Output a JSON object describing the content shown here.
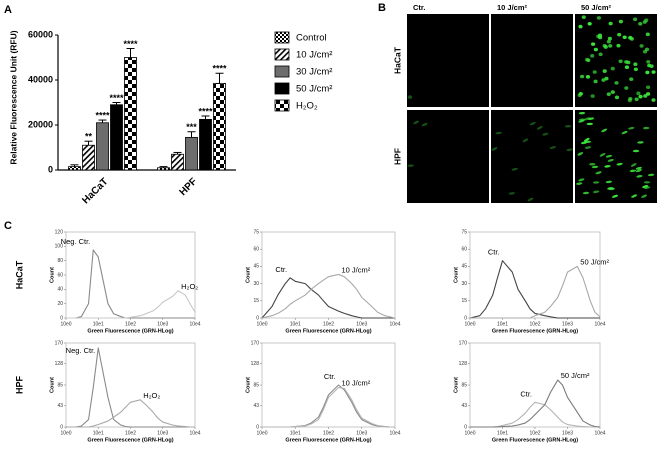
{
  "panels": {
    "a": "A",
    "b": "B",
    "c": "C"
  },
  "microscopy": {
    "columns": [
      "Ctr.",
      "10 J/cm²",
      "50 J/cm²"
    ],
    "rows": [
      "HaCaT",
      "HPF"
    ]
  },
  "flow_rows": [
    "HaCaT",
    "HPF"
  ],
  "chart_data": [
    {
      "type": "bar",
      "ylabel": "Relative Fluorescence Unit (RFU)",
      "categories": [
        "HaCaT",
        "HPF"
      ],
      "ylim": [
        0,
        60000
      ],
      "yticks": [
        0,
        20000,
        40000,
        60000
      ],
      "series": [
        {
          "name": "Control",
          "color": "#000000",
          "pattern": "checker-small",
          "values": [
            1500,
            1000
          ],
          "errors": [
            800,
            500
          ],
          "significance": [
            null,
            null
          ]
        },
        {
          "name": "10 J/cm²",
          "color": "#000000",
          "pattern": "hatch",
          "values": [
            11000,
            7000
          ],
          "errors": [
            1800,
            800
          ],
          "significance": [
            "**",
            null
          ]
        },
        {
          "name": "30 J/cm²",
          "color": "#6d6d6d",
          "pattern": null,
          "values": [
            21000,
            14500
          ],
          "errors": [
            1200,
            2500
          ],
          "significance": [
            "****",
            "***"
          ]
        },
        {
          "name": "50 J/cm²",
          "color": "#000000",
          "pattern": null,
          "values": [
            29000,
            22500
          ],
          "errors": [
            1000,
            1500
          ],
          "significance": [
            "****",
            "****"
          ]
        },
        {
          "name": "H₂O₂",
          "color": "#000000",
          "pattern": "checker-large",
          "values": [
            50000,
            38500
          ],
          "errors": [
            4000,
            4500
          ],
          "significance": [
            "****",
            "****"
          ]
        }
      ]
    },
    {
      "type": "line",
      "xscale": "log",
      "xlabel": "Green Fluorescence (GRN-HLog)",
      "ylabel": "Count",
      "x": [
        1,
        2,
        3,
        5,
        7,
        10,
        20,
        30,
        50,
        70,
        100,
        200,
        300,
        500,
        700,
        1000,
        2000,
        3000,
        5000,
        7000,
        10000
      ],
      "xlim": [
        1,
        10000
      ],
      "xticks": [
        {
          "value": 1,
          "label": "10e0"
        },
        {
          "value": 10,
          "label": "10e1"
        },
        {
          "value": 100,
          "label": "10e2"
        },
        {
          "value": 1000,
          "label": "10e3"
        },
        {
          "value": 10000,
          "label": "10e4"
        }
      ],
      "ylim": [
        0,
        120
      ],
      "yticks": [
        0,
        20,
        40,
        60,
        80,
        100,
        120
      ],
      "series": [
        {
          "name": "Neg. Ctr.",
          "color": "#8a8a8a",
          "values": [
            0,
            0,
            2,
            20,
            95,
            85,
            20,
            6,
            2,
            0,
            0,
            0,
            0,
            0,
            0,
            0,
            0,
            0,
            0,
            0,
            0
          ]
        },
        {
          "name": "H₂O₂",
          "color": "#c8c8c8",
          "values": [
            0,
            0,
            0,
            0,
            0,
            0,
            0,
            0,
            0,
            0,
            1,
            3,
            6,
            10,
            15,
            22,
            30,
            38,
            32,
            20,
            8
          ]
        }
      ]
    },
    {
      "type": "line",
      "xscale": "log",
      "xlabel": "Green Fluorescence (GRN-HLog)",
      "ylabel": "Count",
      "x": [
        1,
        2,
        3,
        5,
        7,
        10,
        20,
        30,
        50,
        70,
        100,
        200,
        300,
        500,
        700,
        1000,
        2000,
        3000,
        5000,
        7000,
        10000
      ],
      "xlim": [
        1,
        10000
      ],
      "xticks": [
        {
          "value": 1,
          "label": "10e0"
        },
        {
          "value": 10,
          "label": "10e1"
        },
        {
          "value": 100,
          "label": "10e2"
        },
        {
          "value": 1000,
          "label": "10e3"
        },
        {
          "value": 10000,
          "label": "10e4"
        }
      ],
      "ylim": [
        0,
        75
      ],
      "yticks": [
        0,
        15,
        30,
        45,
        60,
        75
      ],
      "series": [
        {
          "name": "Ctr.",
          "color": "#444444",
          "values": [
            0,
            10,
            20,
            30,
            35,
            32,
            30,
            25,
            20,
            15,
            10,
            6,
            4,
            2,
            1,
            0,
            0,
            0,
            0,
            0,
            0
          ]
        },
        {
          "name": "10 J/cm²",
          "color": "#a8a8a8",
          "values": [
            0,
            2,
            4,
            8,
            12,
            15,
            20,
            25,
            30,
            33,
            36,
            38,
            36,
            30,
            25,
            18,
            10,
            5,
            2,
            1,
            0
          ]
        }
      ]
    },
    {
      "type": "line",
      "xscale": "log",
      "xlabel": "Green Fluorescence (GRN-HLog)",
      "ylabel": "Count",
      "x": [
        1,
        2,
        3,
        5,
        7,
        10,
        20,
        30,
        50,
        70,
        100,
        200,
        300,
        500,
        700,
        1000,
        2000,
        3000,
        5000,
        7000,
        10000
      ],
      "xlim": [
        1,
        10000
      ],
      "xticks": [
        {
          "value": 1,
          "label": "10e0"
        },
        {
          "value": 10,
          "label": "10e1"
        },
        {
          "value": 100,
          "label": "10e2"
        },
        {
          "value": 1000,
          "label": "10e3"
        },
        {
          "value": 10000,
          "label": "10e4"
        }
      ],
      "ylim": [
        0,
        75
      ],
      "yticks": [
        0,
        15,
        30,
        45,
        60,
        75
      ],
      "series": [
        {
          "name": "Ctr.",
          "color": "#444444",
          "values": [
            0,
            2,
            8,
            20,
            35,
            50,
            40,
            25,
            15,
            8,
            4,
            2,
            1,
            0,
            0,
            0,
            0,
            0,
            0,
            0,
            0
          ]
        },
        {
          "name": "50 J/cm²",
          "color": "#a8a8a8",
          "values": [
            0,
            0,
            0,
            0,
            0,
            0,
            0,
            0,
            0,
            0,
            2,
            5,
            10,
            18,
            28,
            40,
            45,
            35,
            15,
            5,
            1
          ]
        }
      ]
    },
    {
      "type": "line",
      "xscale": "log",
      "xlabel": "Green Fluorescence (GRN-HLog)",
      "ylabel": "Count",
      "x": [
        1,
        2,
        3,
        5,
        7,
        10,
        20,
        30,
        50,
        70,
        100,
        200,
        300,
        500,
        700,
        1000,
        2000,
        3000,
        5000,
        7000,
        10000
      ],
      "xlim": [
        1,
        10000
      ],
      "xticks": [
        {
          "value": 1,
          "label": "10e0"
        },
        {
          "value": 10,
          "label": "10e1"
        },
        {
          "value": 100,
          "label": "10e2"
        },
        {
          "value": 1000,
          "label": "10e3"
        },
        {
          "value": 10000,
          "label": "10e4"
        }
      ],
      "ylim": [
        0,
        170
      ],
      "yticks": [
        0,
        43,
        85,
        128,
        170
      ],
      "series": [
        {
          "name": "Neg. Ctr.",
          "color": "#8a8a8a",
          "values": [
            0,
            0,
            2,
            15,
            80,
            160,
            60,
            15,
            4,
            1,
            0,
            0,
            0,
            0,
            0,
            0,
            0,
            0,
            0,
            0,
            0
          ]
        },
        {
          "name": "H₂O₂",
          "color": "#a8a8a8",
          "values": [
            0,
            0,
            0,
            0,
            2,
            5,
            12,
            20,
            30,
            40,
            50,
            55,
            45,
            30,
            18,
            10,
            4,
            2,
            1,
            0,
            0
          ]
        }
      ]
    },
    {
      "type": "line",
      "xscale": "log",
      "xlabel": "Green Fluorescence (GRN-HLog)",
      "ylabel": "Count",
      "x": [
        1,
        2,
        3,
        5,
        7,
        10,
        20,
        30,
        50,
        70,
        100,
        200,
        300,
        500,
        700,
        1000,
        2000,
        3000,
        5000,
        7000,
        10000
      ],
      "xlim": [
        1,
        10000
      ],
      "xticks": [
        {
          "value": 1,
          "label": "10e0"
        },
        {
          "value": 10,
          "label": "10e1"
        },
        {
          "value": 100,
          "label": "10e2"
        },
        {
          "value": 1000,
          "label": "10e3"
        },
        {
          "value": 10000,
          "label": "10e4"
        }
      ],
      "ylim": [
        0,
        170
      ],
      "yticks": [
        0,
        43,
        85,
        128,
        170
      ],
      "series": [
        {
          "name": "Ctr.",
          "color": "#8a8a8a",
          "values": [
            0,
            0,
            0,
            0,
            0,
            1,
            3,
            8,
            20,
            40,
            65,
            85,
            75,
            50,
            30,
            15,
            5,
            2,
            1,
            0,
            0
          ]
        },
        {
          "name": "10 J/cm²",
          "color": "#b4b4b4",
          "values": [
            0,
            0,
            0,
            0,
            0,
            1,
            2,
            6,
            15,
            35,
            60,
            80,
            78,
            55,
            35,
            18,
            7,
            3,
            1,
            0,
            0
          ]
        }
      ]
    },
    {
      "type": "line",
      "xscale": "log",
      "xlabel": "Green Fluorescence (GRN-HLog)",
      "ylabel": "Count",
      "x": [
        1,
        2,
        3,
        5,
        7,
        10,
        20,
        30,
        50,
        70,
        100,
        200,
        300,
        500,
        700,
        1000,
        2000,
        3000,
        5000,
        7000,
        10000
      ],
      "xlim": [
        1,
        10000
      ],
      "xticks": [
        {
          "value": 1,
          "label": "10e0"
        },
        {
          "value": 10,
          "label": "10e1"
        },
        {
          "value": 100,
          "label": "10e2"
        },
        {
          "value": 1000,
          "label": "10e3"
        },
        {
          "value": 10000,
          "label": "10e4"
        }
      ],
      "ylim": [
        0,
        170
      ],
      "yticks": [
        0,
        43,
        85,
        128,
        170
      ],
      "series": [
        {
          "name": "Ctr.",
          "color": "#b4b4b4",
          "values": [
            0,
            0,
            0,
            0,
            1,
            3,
            8,
            15,
            28,
            40,
            50,
            45,
            35,
            20,
            10,
            5,
            2,
            1,
            0,
            0,
            0
          ]
        },
        {
          "name": "50 J/cm²",
          "color": "#7a7a7a",
          "values": [
            0,
            0,
            0,
            0,
            0,
            1,
            2,
            4,
            8,
            15,
            25,
            45,
            70,
            95,
            85,
            60,
            30,
            12,
            4,
            1,
            0
          ]
        }
      ]
    }
  ]
}
